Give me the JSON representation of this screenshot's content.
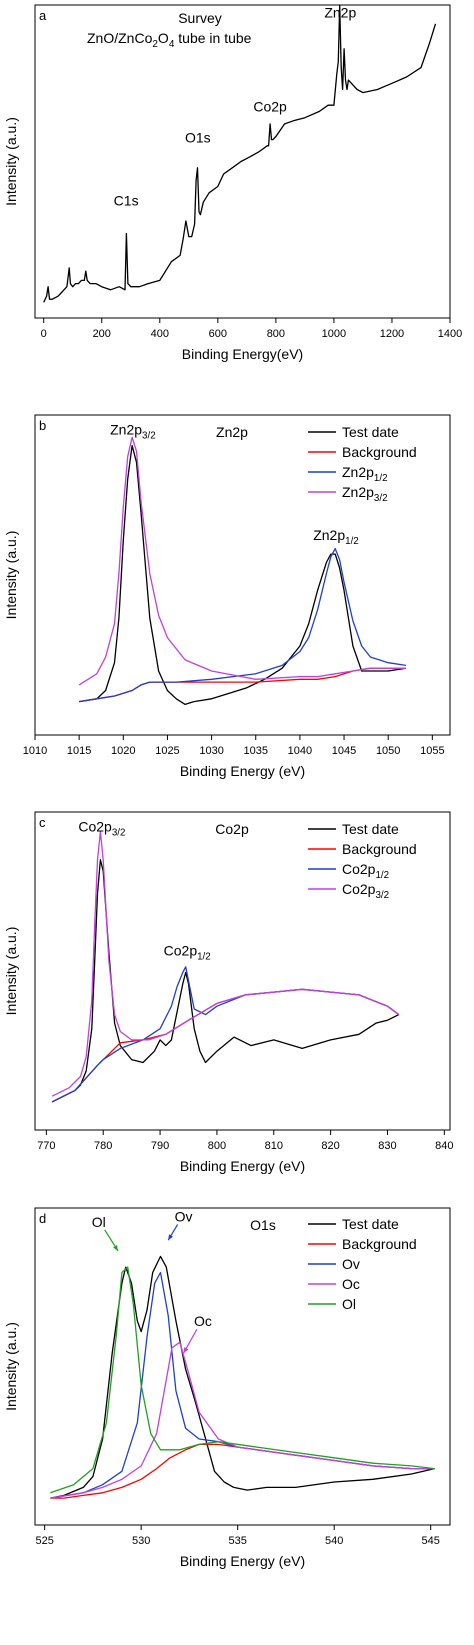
{
  "chart_data": [
    {
      "type": "line",
      "panel_label": "a",
      "title_lines": [
        "Survey",
        "ZnO/ZnCo"
      ],
      "title_sub": {
        "sub1": "2",
        "mid": "O",
        "sub2": "4",
        "tail": " tube in tube"
      },
      "xlabel": "Binding Energy(eV)",
      "ylabel": "Intensity (a.u.)",
      "xlim": [
        -30,
        1400
      ],
      "ylim": [
        0,
        100
      ],
      "xticks": [
        0,
        200,
        400,
        600,
        800,
        1000,
        1200,
        1400
      ],
      "annotations": [
        {
          "text": "Zn2p",
          "x": 1022,
          "y": 96
        },
        {
          "text": "Co2p",
          "x": 780,
          "y": 66
        },
        {
          "text": "O1s",
          "x": 531,
          "y": 56
        },
        {
          "text": "C1s",
          "x": 284,
          "y": 36
        }
      ],
      "series": [
        {
          "color": "#000000",
          "x": [
            0,
            10,
            15,
            20,
            30,
            50,
            60,
            70,
            80,
            88,
            92,
            100,
            110,
            120,
            130,
            140,
            145,
            150,
            160,
            180,
            200,
            230,
            260,
            280,
            285,
            290,
            300,
            330,
            360,
            400,
            440,
            470,
            480,
            490,
            500,
            510,
            520,
            525,
            530,
            535,
            540,
            550,
            570,
            600,
            620,
            650,
            680,
            700,
            740,
            770,
            775,
            780,
            785,
            790,
            800,
            830,
            860,
            900,
            950,
            980,
            1000,
            1010,
            1015,
            1020,
            1025,
            1030,
            1035,
            1040,
            1045,
            1050,
            1080,
            1100,
            1150,
            1200,
            1250,
            1300,
            1330,
            1350
          ],
          "y": [
            5,
            7,
            10,
            6,
            6,
            7,
            8,
            9,
            10,
            16,
            11,
            10,
            11,
            11,
            12,
            12,
            15,
            12,
            11,
            11,
            10,
            9,
            10,
            9,
            27,
            11,
            10,
            10,
            11,
            12,
            18,
            20,
            25,
            31,
            26,
            26,
            30,
            44,
            48,
            34,
            33,
            37,
            40,
            42,
            46,
            48,
            50,
            51,
            53,
            55,
            55,
            62,
            57,
            57,
            58,
            62,
            63,
            64,
            66,
            68,
            68,
            78,
            82,
            100,
            80,
            73,
            86,
            76,
            73,
            76,
            73,
            72,
            73,
            75,
            77,
            80,
            88,
            94
          ]
        }
      ]
    },
    {
      "type": "line",
      "panel_label": "b",
      "top_label": "Zn2p",
      "xlabel": "Binding Energy (eV)",
      "ylabel": "Intensity (a.u.)",
      "xlim": [
        1010,
        1057
      ],
      "ylim": [
        -10,
        105
      ],
      "xticks": [
        1010,
        1015,
        1020,
        1025,
        1030,
        1035,
        1040,
        1045,
        1050,
        1055
      ],
      "peak_labels": [
        {
          "main": "Zn2p",
          "sub": "3/2",
          "x": 1021,
          "y": 98
        },
        {
          "main": "Zn2p",
          "sub": "1/2",
          "x": 1044,
          "y": 60
        }
      ],
      "legend": [
        {
          "label": "Test date",
          "color": "#000000"
        },
        {
          "label": "Background",
          "color": "#ff0000"
        },
        {
          "label": "Zn2p",
          "sub": "1/2",
          "color": "#1f3fd0"
        },
        {
          "label": "Zn2p",
          "sub": "3/2",
          "color": "#c040e0"
        }
      ],
      "series": [
        {
          "name": "Test date",
          "color": "#000000",
          "x": [
            1015,
            1017,
            1018,
            1019,
            1019.5,
            1020,
            1020.5,
            1021,
            1021.5,
            1022,
            1023,
            1024,
            1025,
            1026,
            1027,
            1028,
            1030,
            1032,
            1034,
            1036,
            1038,
            1040,
            1041,
            1042,
            1043,
            1043.5,
            1044,
            1044.5,
            1045,
            1046,
            1047,
            1048,
            1050,
            1052
          ],
          "y": [
            2,
            3,
            6,
            16,
            32,
            60,
            82,
            94,
            88,
            70,
            32,
            13,
            6,
            3,
            1,
            2,
            3,
            5,
            7,
            10,
            14,
            22,
            30,
            42,
            52,
            55,
            55,
            50,
            42,
            22,
            13,
            13,
            13,
            14
          ]
        },
        {
          "name": "Background",
          "color": "#ff0000",
          "x": [
            1015,
            1017,
            1019,
            1021,
            1022,
            1023,
            1026,
            1030,
            1035,
            1040,
            1042,
            1044,
            1046,
            1048,
            1050,
            1052
          ],
          "y": [
            2,
            3,
            4,
            6,
            8,
            9,
            9,
            9,
            9,
            10,
            10,
            11,
            13,
            14,
            14,
            14
          ]
        },
        {
          "name": "Zn2p1/2",
          "color": "#1f3fd0",
          "x": [
            1015,
            1017,
            1019,
            1021,
            1022,
            1023,
            1026,
            1030,
            1035,
            1038,
            1040,
            1041,
            1042,
            1043,
            1043.5,
            1044,
            1044.5,
            1045,
            1046,
            1047,
            1048,
            1050,
            1052
          ],
          "y": [
            2,
            3,
            4,
            6,
            8,
            9,
            9,
            10,
            12,
            15,
            20,
            25,
            35,
            48,
            54,
            57,
            53,
            45,
            31,
            22,
            18,
            16,
            15
          ]
        },
        {
          "name": "Zn2p3/2",
          "color": "#c040e0",
          "x": [
            1015,
            1017,
            1018,
            1019,
            1019.5,
            1020,
            1020.5,
            1021,
            1021.5,
            1022,
            1023,
            1024,
            1025,
            1027,
            1030,
            1035,
            1040,
            1042,
            1044,
            1046,
            1048,
            1050,
            1052
          ],
          "y": [
            8,
            12,
            18,
            30,
            48,
            72,
            90,
            97,
            92,
            74,
            48,
            33,
            25,
            17,
            13,
            10,
            11,
            11,
            12,
            13,
            14,
            14,
            14
          ]
        }
      ]
    },
    {
      "type": "line",
      "panel_label": "c",
      "top_label": "Co2p",
      "xlabel": "Binding Energy (eV)",
      "ylabel": "Intensity (a.u.)",
      "xlim": [
        768,
        841
      ],
      "ylim": [
        -8,
        105
      ],
      "xticks": [
        770,
        780,
        790,
        800,
        810,
        820,
        830,
        840
      ],
      "peak_labels": [
        {
          "main": "Co2p",
          "sub": "3/2",
          "x": 779.5,
          "y": 98
        },
        {
          "main": "Co2p",
          "sub": "1/2",
          "x": 794.5,
          "y": 54
        }
      ],
      "legend": [
        {
          "label": "Test date",
          "color": "#000000"
        },
        {
          "label": "Background",
          "color": "#ff0000"
        },
        {
          "label": "Co2p",
          "sub": "1/2",
          "color": "#1f3fd0"
        },
        {
          "label": "Co2p",
          "sub": "3/2",
          "color": "#c040e0"
        }
      ],
      "series": [
        {
          "name": "Test date",
          "color": "#000000",
          "x": [
            771,
            773,
            775,
            776,
            777,
            778,
            778.5,
            779,
            779.5,
            780,
            781,
            782,
            783,
            785,
            787,
            789,
            790,
            791,
            792,
            793,
            794,
            794.5,
            795,
            796,
            797,
            798,
            800,
            803,
            806,
            810,
            815,
            820,
            825,
            828,
            830,
            832
          ],
          "y": [
            2,
            4,
            6,
            8,
            13,
            28,
            52,
            76,
            88,
            84,
            55,
            30,
            22,
            17,
            16,
            20,
            24,
            22,
            24,
            34,
            44,
            48,
            44,
            28,
            20,
            16,
            20,
            25,
            22,
            24,
            21,
            24,
            26,
            30,
            31,
            33
          ]
        },
        {
          "name": "Background",
          "color": "#ff0000",
          "x": [
            771,
            775,
            779,
            783,
            787,
            791,
            795,
            800,
            805,
            810,
            815,
            820,
            825,
            830,
            832
          ],
          "y": [
            2,
            6,
            15,
            23,
            24,
            26,
            31,
            37,
            40,
            41,
            42,
            41,
            40,
            36,
            33
          ]
        },
        {
          "name": "Co2p1/2",
          "color": "#1f3fd0",
          "x": [
            771,
            775,
            779,
            780,
            783,
            787,
            790,
            792,
            793,
            794,
            794.5,
            795,
            796,
            798,
            800,
            805,
            810,
            815,
            820,
            825,
            830,
            832
          ],
          "y": [
            2,
            6,
            15,
            17,
            21,
            24,
            28,
            36,
            43,
            48,
            50,
            45,
            35,
            33,
            36,
            40,
            41,
            42,
            41,
            40,
            36,
            33
          ]
        },
        {
          "name": "Co2p3/2",
          "color": "#c040e0",
          "x": [
            771,
            774,
            776,
            777,
            778,
            778.5,
            779,
            779.5,
            780,
            781,
            782,
            783,
            785,
            788,
            791,
            795,
            800,
            805,
            810,
            815,
            820,
            825,
            830,
            832
          ],
          "y": [
            4,
            7,
            11,
            18,
            38,
            65,
            88,
            98,
            88,
            52,
            33,
            27,
            24,
            24,
            26,
            31,
            37,
            40,
            41,
            42,
            41,
            40,
            36,
            33
          ]
        }
      ]
    },
    {
      "type": "line",
      "panel_label": "d",
      "top_label": "O1s",
      "xlabel": "Binding Energy (eV)",
      "ylabel": "Intensity (a.u.)",
      "xlim": [
        524.5,
        546
      ],
      "ylim": [
        -8,
        110
      ],
      "xticks": [
        525,
        530,
        535,
        540,
        545
      ],
      "peak_labels": [
        {
          "text": "Ol",
          "x": 527.8,
          "y": 103,
          "color": "#20a020",
          "ax": 528.8,
          "ay": 94
        },
        {
          "text": "Ov",
          "x": 532.2,
          "y": 105,
          "color": "#1f3fd0",
          "ax": 531.4,
          "ay": 98
        },
        {
          "text": "Oc",
          "x": 533.2,
          "y": 66,
          "color": "#c040e0",
          "ax": 532.2,
          "ay": 56
        }
      ],
      "legend": [
        {
          "label": "Test date",
          "color": "#000000"
        },
        {
          "label": "Background",
          "color": "#ff0000"
        },
        {
          "label": "Ov",
          "color": "#1f3fd0"
        },
        {
          "label": "Oc",
          "color": "#c040e0"
        },
        {
          "label": "Ol",
          "color": "#20a020"
        }
      ],
      "series": [
        {
          "name": "Test date",
          "color": "#000000",
          "x": [
            525.3,
            526,
            527,
            527.5,
            528,
            528.5,
            529,
            529.2,
            529.5,
            529.8,
            530,
            530.3,
            530.6,
            531,
            531.3,
            531.8,
            532.3,
            532.8,
            533.3,
            533.8,
            534.3,
            534.8,
            535.5,
            536.5,
            538,
            540,
            542,
            544,
            545.2
          ],
          "y": [
            2,
            3,
            6,
            10,
            24,
            56,
            82,
            88,
            82,
            68,
            64,
            72,
            86,
            92,
            88,
            68,
            50,
            38,
            25,
            12,
            8,
            6,
            5,
            6,
            6,
            8,
            9,
            11,
            13
          ]
        },
        {
          "name": "Background",
          "color": "#ff0000",
          "x": [
            525.3,
            526,
            527,
            528,
            529,
            530,
            530.8,
            531.5,
            532.3,
            533,
            534,
            535,
            536,
            537,
            538,
            540,
            542,
            544,
            545.2
          ],
          "y": [
            2,
            2,
            3,
            4,
            6,
            9,
            13,
            17,
            20,
            22,
            22,
            21,
            20,
            19,
            18,
            16,
            14,
            13,
            13
          ]
        },
        {
          "name": "Ov",
          "color": "#1f3fd0",
          "x": [
            525.3,
            527,
            528,
            529,
            529.8,
            530.3,
            530.7,
            531,
            531.4,
            531.8,
            532.3,
            533,
            534,
            535,
            537,
            540,
            542,
            544,
            545.2
          ],
          "y": [
            2,
            4,
            7,
            12,
            30,
            62,
            82,
            86,
            70,
            42,
            28,
            24,
            23,
            21,
            19,
            16,
            14,
            13,
            13
          ]
        },
        {
          "name": "Oc",
          "color": "#c040e0",
          "x": [
            525.3,
            527,
            528,
            529,
            530,
            530.8,
            531.2,
            531.6,
            532,
            532.4,
            533,
            534,
            535,
            537,
            540,
            542,
            544,
            545.2
          ],
          "y": [
            2,
            4,
            6,
            9,
            14,
            26,
            42,
            58,
            60,
            50,
            34,
            24,
            21,
            19,
            16,
            14,
            13,
            13
          ]
        },
        {
          "name": "Ol",
          "color": "#20a020",
          "x": [
            525.3,
            526.5,
            527.5,
            528.2,
            528.7,
            529,
            529.3,
            529.6,
            530,
            530.5,
            531,
            532,
            533,
            534,
            536,
            538,
            540,
            542,
            544,
            545.2
          ],
          "y": [
            4,
            7,
            13,
            30,
            62,
            86,
            88,
            74,
            44,
            26,
            20,
            20,
            22,
            23,
            21,
            19,
            17,
            15,
            14,
            13
          ]
        }
      ]
    }
  ]
}
